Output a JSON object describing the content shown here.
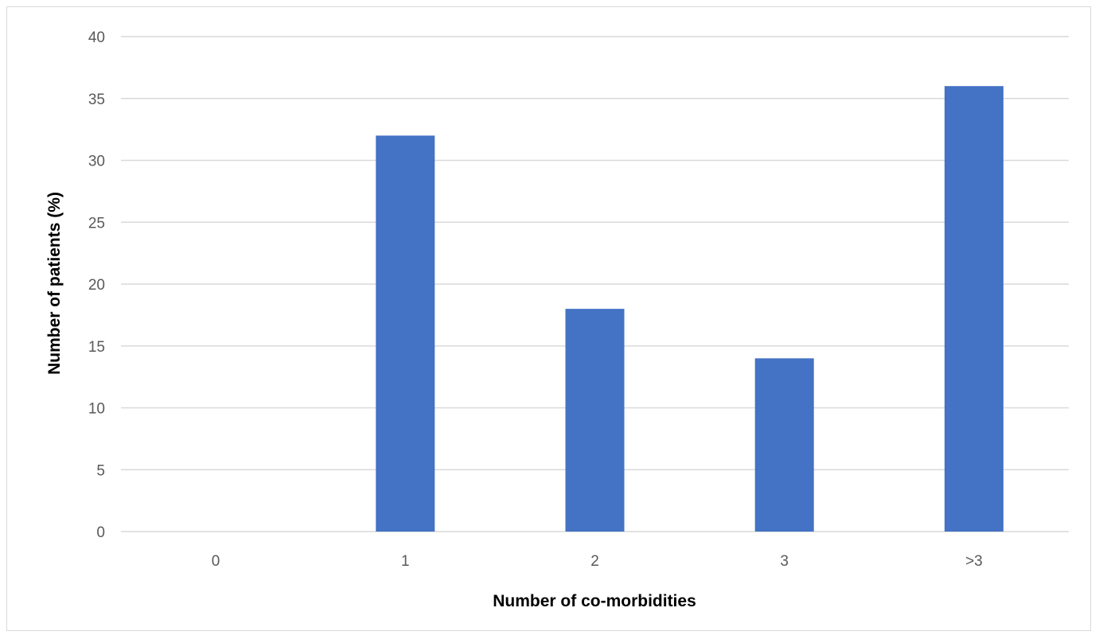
{
  "chart_data": {
    "type": "bar",
    "categories": [
      "0",
      "1",
      "2",
      "3",
      ">3"
    ],
    "values": [
      0,
      32,
      18,
      14,
      36
    ],
    "title": "",
    "xlabel": "Number of co-morbidities",
    "ylabel": "Number of patients (%)",
    "ylim": [
      0,
      40
    ],
    "yticks": [
      0,
      5,
      10,
      15,
      20,
      25,
      30,
      35,
      40
    ],
    "grid": true,
    "legend": "none",
    "bar_color": "#4472C4",
    "grid_color": "#d9d9d9"
  }
}
